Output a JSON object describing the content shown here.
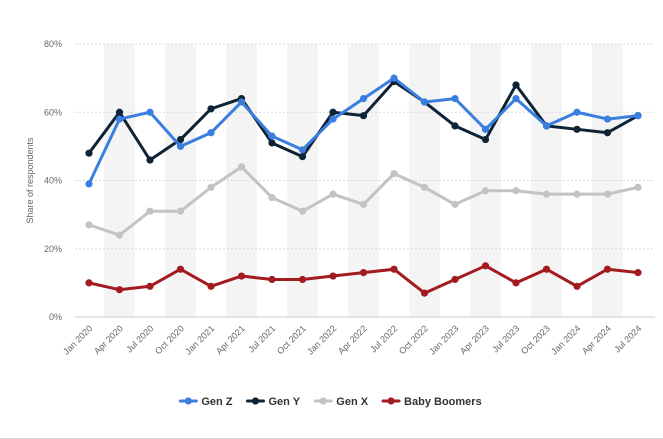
{
  "chart_data": {
    "type": "line",
    "title": "",
    "xlabel": "",
    "ylabel": "Share of respondents",
    "ylim": [
      0,
      80
    ],
    "y_ticks": [
      {
        "value": 0,
        "label": "0%"
      },
      {
        "value": 20,
        "label": "20%"
      },
      {
        "value": 40,
        "label": "40%"
      },
      {
        "value": 60,
        "label": "60%"
      },
      {
        "value": 80,
        "label": "80%"
      }
    ],
    "grid": true,
    "legend_position": "bottom",
    "categories": [
      "Jan 2020",
      "Apr 2020",
      "Jul 2020",
      "Oct 2020",
      "Jan 2021",
      "Apr 2021",
      "Jul 2021",
      "Oct 2021",
      "Jan 2022",
      "Apr 2022",
      "Jul 2022",
      "Oct 2022",
      "Jan 2023",
      "Apr 2023",
      "Jul 2023",
      "Oct 2023",
      "Jan 2024",
      "Apr 2024",
      "Jul 2024"
    ],
    "series": [
      {
        "name": "Gen Z",
        "color": "#3a7fe0",
        "values": [
          39,
          58,
          60,
          50,
          54,
          63,
          53,
          49,
          58,
          64,
          70,
          63,
          64,
          55,
          64,
          56,
          60,
          58,
          59
        ]
      },
      {
        "name": "Gen Y",
        "color": "#0e2436",
        "values": [
          48,
          60,
          46,
          52,
          61,
          64,
          51,
          47,
          60,
          59,
          69,
          63,
          56,
          52,
          68,
          56,
          55,
          54,
          59
        ]
      },
      {
        "name": "Gen X",
        "color": "#c3c3c3",
        "values": [
          27,
          24,
          31,
          31,
          38,
          44,
          35,
          31,
          36,
          33,
          42,
          38,
          33,
          37,
          37,
          36,
          36,
          36,
          38
        ]
      },
      {
        "name": "Baby Boomers",
        "color": "#a31a1f",
        "values": [
          10,
          8,
          9,
          14,
          9,
          12,
          11,
          11,
          12,
          13,
          14,
          7,
          11,
          15,
          10,
          14,
          9,
          14,
          13
        ]
      }
    ]
  }
}
